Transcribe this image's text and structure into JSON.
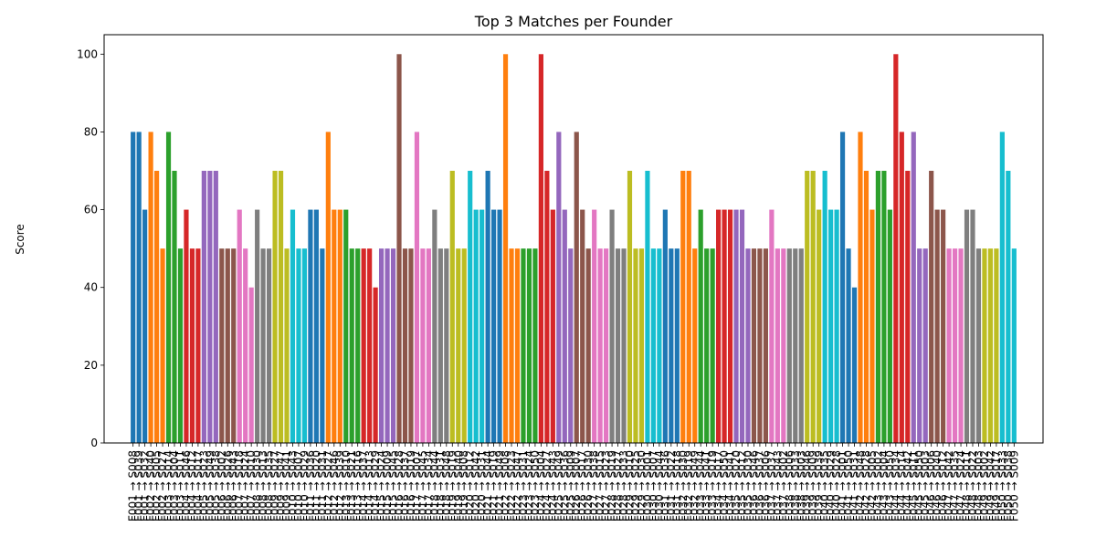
{
  "chart_data": {
    "type": "bar",
    "title": "Top 3 Matches per Founder",
    "xlabel": "",
    "ylabel": "Score",
    "ylim": [
      0,
      105
    ],
    "yticks": [
      0,
      20,
      40,
      60,
      80,
      100
    ],
    "grid": false,
    "legend": "none",
    "colors": [
      "#1f77b4",
      "#ff7f0e",
      "#2ca02c",
      "#d62728",
      "#9467bd",
      "#8c564b",
      "#e377c2",
      "#7f7f7f",
      "#bcbd22",
      "#17becf"
    ],
    "categories": [
      "F001 → S008",
      "F001 → S039",
      "F001 → S032",
      "F002 → S040",
      "F002 → S005",
      "F002 → S027",
      "F003 → S014",
      "F003 → S004",
      "F003 → S011",
      "F004 → S046",
      "F004 → S012",
      "F004 → S017",
      "F005 → S023",
      "F005 → S049",
      "F005 → S038",
      "F006 → S002",
      "F006 → S026",
      "F006 → S043",
      "F007 → S018",
      "F007 → S024",
      "F007 → S010",
      "F008 → S030",
      "F008 → S013",
      "F008 → S035",
      "F009 → S027",
      "F009 → S047",
      "F009 → S041",
      "F010 → S043",
      "F010 → S007",
      "F010 → S029",
      "F011 → S036",
      "F011 → S020",
      "F011 → S031",
      "F012 → S027",
      "F012 → S046",
      "F012 → S039",
      "F013 → S010",
      "F013 → S021",
      "F013 → S016",
      "F014 → S037",
      "F014 → S013",
      "F014 → S029",
      "F015 → S024",
      "F015 → S009",
      "F015 → S045",
      "F016 → S028",
      "F016 → S037",
      "F016 → S019",
      "F017 → S007",
      "F017 → S045",
      "F017 → S034",
      "F018 → S044",
      "F018 → S031",
      "F018 → S048",
      "F019 → S019",
      "F019 → S040",
      "F019 → S008",
      "F020 → S012",
      "F020 → S042",
      "F020 → S031",
      "F021 → S044",
      "F021 → S019",
      "F021 → S049",
      "F022 → S008",
      "F022 → S023",
      "F022 → S047",
      "F023 → S031",
      "F023 → S024",
      "F023 → S050",
      "F024 → S004",
      "F024 → S027",
      "F024 → S043",
      "F025 → S049",
      "F025 → S036",
      "F025 → S009",
      "F026 → S007",
      "F026 → S017",
      "F026 → S030",
      "F027 → S038",
      "F027 → S015",
      "F027 → S023",
      "F028 → S019",
      "F028 → S027",
      "F028 → S033",
      "F029 → S010",
      "F029 → S025",
      "F029 → S030",
      "F030 → S001",
      "F030 → S007",
      "F030 → S044",
      "F031 → S036",
      "F031 → S022",
      "F031 → S018",
      "F032 → S030",
      "F032 → S019",
      "F032 → S049",
      "F033 → S044",
      "F033 → S041",
      "F033 → S019",
      "F034 → S017",
      "F034 → S050",
      "F034 → S041",
      "F035 → S020",
      "F035 → S012",
      "F035 → S030",
      "F036 → S046",
      "F036 → S037",
      "F036 → S006",
      "F037 → S037",
      "F037 → S043",
      "F037 → S002",
      "F038 → S006",
      "F038 → S033",
      "F038 → S003",
      "F039 → S046",
      "F039 → S009",
      "F039 → S039",
      "F040 → S035",
      "F040 → S029",
      "F040 → S028",
      "F041 → S001",
      "F041 → S050",
      "F041 → S031",
      "F042 → S048",
      "F042 → S028",
      "F042 → S005",
      "F043 → S002",
      "F043 → S004",
      "F043 → S050",
      "F044 → S034",
      "F044 → S014",
      "F044 → S042",
      "F045 → S011",
      "F045 → S050",
      "F045 → S003",
      "F046 → S006",
      "F046 → S040",
      "F046 → S012",
      "F047 → S042",
      "F047 → S035",
      "F047 → S024",
      "F048 → S011",
      "F048 → S022",
      "F048 → S003",
      "F049 → S002",
      "F049 → S042",
      "F049 → S017",
      "F050 → S033",
      "F050 → S038",
      "F050 → S009"
    ],
    "values": [
      80,
      80,
      60,
      80,
      70,
      50,
      80,
      70,
      50,
      60,
      50,
      50,
      70,
      70,
      70,
      50,
      50,
      50,
      60,
      50,
      40,
      60,
      50,
      50,
      70,
      70,
      50,
      60,
      50,
      50,
      60,
      60,
      50,
      80,
      60,
      60,
      60,
      50,
      50,
      50,
      50,
      40,
      50,
      50,
      50,
      100,
      50,
      50,
      80,
      50,
      50,
      60,
      50,
      50,
      70,
      50,
      50,
      70,
      60,
      60,
      70,
      60,
      60,
      100,
      50,
      50,
      50,
      50,
      50,
      100,
      70,
      60,
      80,
      60,
      50,
      80,
      60,
      50,
      60,
      50,
      50,
      60,
      50,
      50,
      70,
      50,
      50,
      70,
      50,
      50,
      60,
      50,
      50,
      70,
      70,
      50,
      60,
      50,
      50,
      60,
      60,
      60,
      60,
      60,
      50,
      50,
      50,
      50,
      60,
      50,
      50,
      50,
      50,
      50,
      70,
      70,
      60,
      70,
      60,
      60,
      80,
      50,
      40,
      80,
      70,
      60,
      70,
      70,
      60,
      100,
      80,
      70,
      80,
      50,
      50,
      70,
      60,
      60,
      50,
      50,
      50,
      60,
      60,
      50,
      50,
      50,
      50,
      80,
      70,
      50
    ]
  }
}
